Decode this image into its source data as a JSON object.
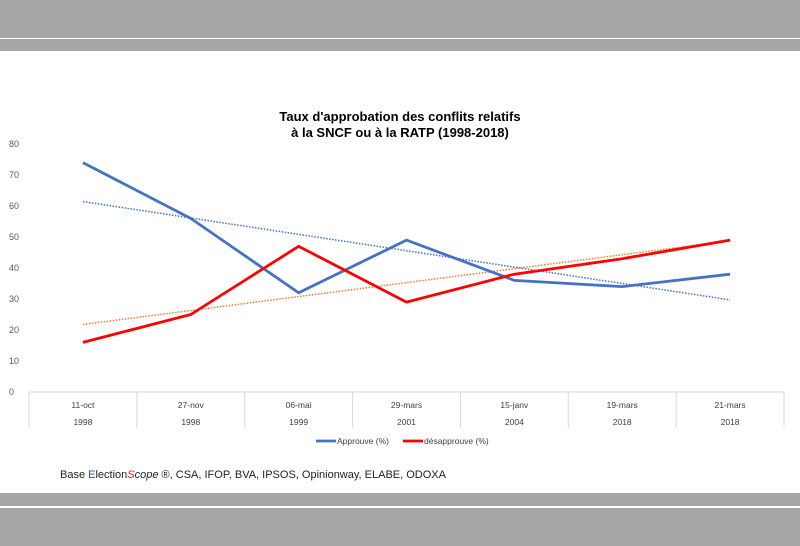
{
  "chart_data": {
    "type": "line",
    "title": [
      "Taux d'approbation des conflits relatifs",
      "à la SNCF ou à la RATP (1998-2018)"
    ],
    "categories": [
      [
        "11-oct",
        "1998"
      ],
      [
        "27-nov",
        "1998"
      ],
      [
        "06-mai",
        "1999"
      ],
      [
        "29-mars",
        "2001"
      ],
      [
        "15-janv",
        "2004"
      ],
      [
        "19-mars",
        "2018"
      ],
      [
        "21-mars",
        "2018"
      ]
    ],
    "series": [
      {
        "name": "Approuve (%)",
        "color": "#4472C4",
        "trend_color": "#4472C4",
        "values": [
          74,
          56,
          32,
          49,
          36,
          34,
          38
        ]
      },
      {
        "name": "désapprouve (%)",
        "color": "#FF0000",
        "trend_color": "#ED7D31",
        "values": [
          16,
          25,
          47,
          29,
          38,
          43,
          49
        ]
      }
    ],
    "trendline": "linear",
    "ylim": [
      0,
      80
    ],
    "yticks": [
      0,
      10,
      20,
      30,
      40,
      50,
      60,
      70,
      80
    ],
    "xlabel": "",
    "ylabel": "",
    "grid": false,
    "legend": "bottom"
  },
  "source": {
    "prefix": "Base ",
    "e": "E",
    "lection": "lection",
    "s": "S",
    "cope": "cope",
    "suffix": " ®, CSA, IFOP, BVA, IPSOS, Opinionway, ELABE, ODOXA"
  }
}
